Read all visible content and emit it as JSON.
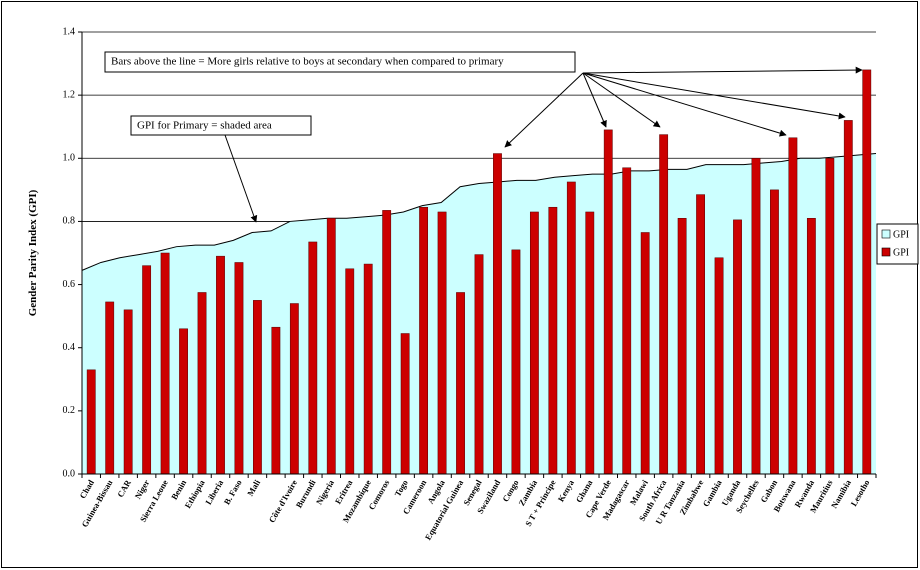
{
  "chart_data": {
    "type": "bar-area",
    "y_label": "Gender Parity Index (GPI)",
    "annotations": [
      "Bars above the line = More girls relative to boys at secondary when compared to primary",
      "GPI for Primary  = shaded area"
    ],
    "categories": [
      "Chad",
      "Guinea-Bissau",
      "CAR",
      "Niger",
      "Sierra Leone",
      "Benin",
      "Ethiopia",
      "Liberia",
      "B. Faso",
      "Mali",
      null,
      "Côte d'Ivoire",
      "Burundi",
      "Nigeria",
      "Eritrea",
      "Mozambique",
      "Comoros",
      "Togo",
      "Cameroon",
      "Angola",
      "Equatorial Guinea",
      "Senegal",
      "Swaziland",
      "Congo",
      "Zambia",
      "S T + Principe",
      "Kenya",
      "Ghana",
      "Cape Verde",
      "Madagascar",
      "Malawi",
      "South Africa",
      "U R Tanzania",
      "Zimbabwe",
      "Gambia",
      "Uganda",
      "Seychelles",
      "Gabon",
      "Botswana",
      "Rwanda",
      "Mauritius",
      "Namibia",
      "Lesotho"
    ],
    "series": [
      {
        "name": "GPI",
        "type": "area",
        "color": "#ccffff",
        "values": [
          0.645,
          0.67,
          0.685,
          0.695,
          0.705,
          0.72,
          0.725,
          0.725,
          0.74,
          0.765,
          0.77,
          0.8,
          0.805,
          0.81,
          0.81,
          0.815,
          0.82,
          0.83,
          0.85,
          0.86,
          0.91,
          0.92,
          0.925,
          0.93,
          0.93,
          0.94,
          0.945,
          0.95,
          0.95,
          0.96,
          0.96,
          0.965,
          0.965,
          0.98,
          0.98,
          0.98,
          0.985,
          0.99,
          1.0,
          1.0,
          1.005,
          1.01,
          1.015
        ]
      },
      {
        "name": "GPI",
        "type": "bar",
        "color": "#cc0000",
        "values": [
          0.33,
          0.545,
          0.52,
          0.66,
          0.7,
          0.46,
          0.575,
          0.69,
          0.67,
          0.55,
          0.465,
          0.54,
          0.735,
          0.81,
          0.65,
          0.665,
          0.835,
          0.445,
          0.845,
          0.83,
          0.575,
          0.695,
          1.015,
          0.71,
          0.83,
          0.845,
          0.925,
          0.83,
          1.09,
          0.97,
          0.765,
          1.075,
          0.81,
          0.885,
          0.685,
          0.805,
          1.0,
          0.9,
          1.065,
          0.81,
          1.0,
          1.12,
          1.28
        ]
      }
    ],
    "ylim": [
      0,
      1.4
    ],
    "yticks": [
      {
        "value": 0,
        "label": "0.0"
      },
      0.2,
      0.4,
      0.6,
      0.8,
      {
        "value": 1,
        "label": "1.0"
      },
      1.2,
      1.4
    ],
    "grid": true,
    "legend": "right"
  }
}
